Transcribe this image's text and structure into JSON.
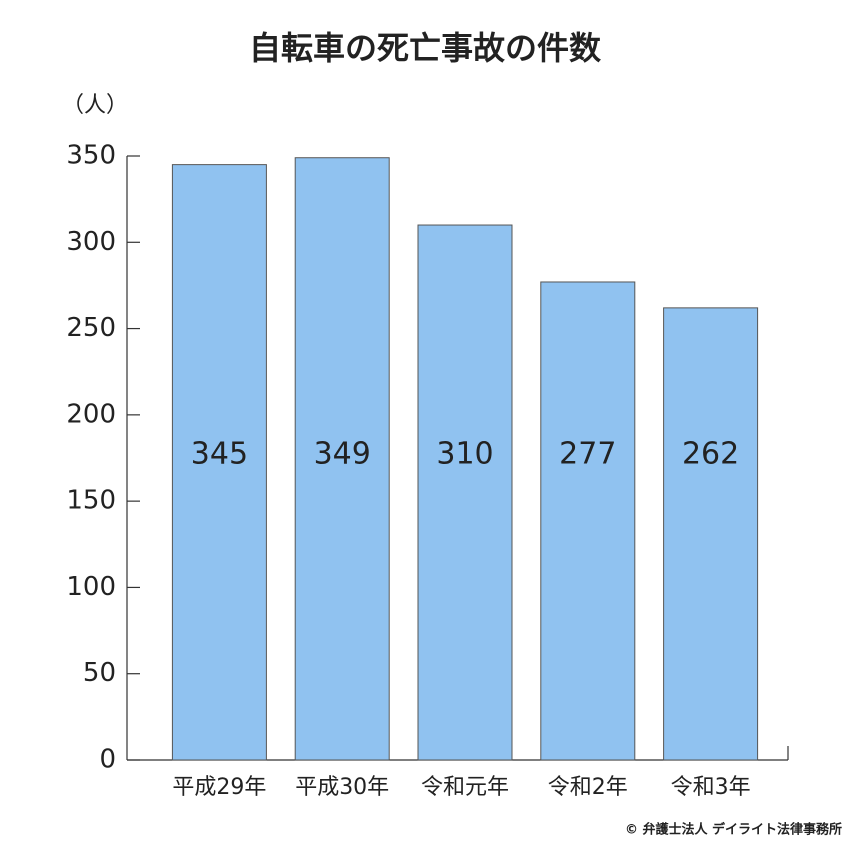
{
  "chart_data": {
    "type": "bar",
    "title": "自転車の死亡事故の件数",
    "y_label": "（人）",
    "categories": [
      "平成29年",
      "平成30年",
      "令和元年",
      "令和2年",
      "令和3年"
    ],
    "values": [
      345,
      349,
      310,
      277,
      262
    ],
    "color": "#90c2f0",
    "ylim": [
      0,
      350
    ],
    "yticks": [
      0,
      50,
      100,
      150,
      200,
      250,
      300,
      350
    ],
    "footer": "© 弁護士法人 デイライト法律事務所"
  }
}
